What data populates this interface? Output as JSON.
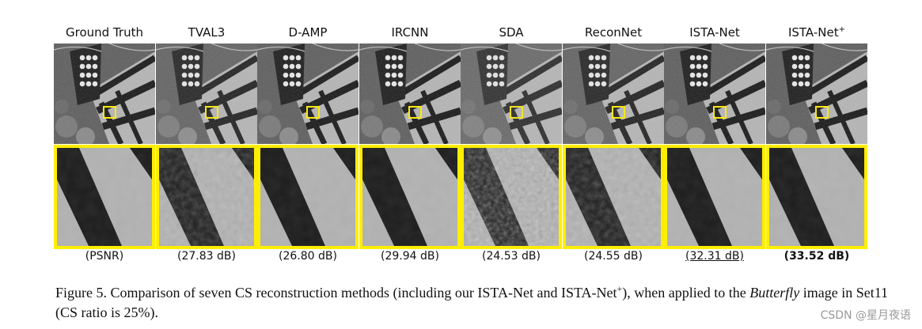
{
  "methods": [
    {
      "name": "Ground Truth",
      "psnr": "(PSNR)",
      "style": "plain",
      "noise": 0
    },
    {
      "name": "TVAL3",
      "psnr": "(27.83 dB)",
      "style": "plain",
      "noise": 1
    },
    {
      "name": "D-AMP",
      "psnr": "(26.80 dB)",
      "style": "plain",
      "noise": 0
    },
    {
      "name": "IRCNN",
      "psnr": "(29.94 dB)",
      "style": "plain",
      "noise": 0
    },
    {
      "name": "SDA",
      "psnr": "(24.53 dB)",
      "style": "plain",
      "noise": 2
    },
    {
      "name": "ReconNet",
      "psnr": "(24.55 dB)",
      "style": "plain",
      "noise": 1
    },
    {
      "name": "ISTA-Net",
      "psnr": "(32.31 dB)",
      "style": "second",
      "noise": 0
    },
    {
      "name": "ISTA-Net",
      "name_sup": "+",
      "psnr": "(33.52 dB)",
      "style": "best",
      "noise": 0
    }
  ],
  "caption": {
    "part1": "Figure 5. Comparison of seven CS reconstruction methods (including our ISTA-Net and ISTA-Net",
    "sup": "+",
    "part2": "), when applied to the ",
    "image_name": "Butterfly",
    "part3": " image in Set11 (CS ratio is 25%)."
  },
  "watermark": "CSDN @星月夜语",
  "colors": {
    "highlight": "#ffee00",
    "wing_dark": "#1c1c1c",
    "wing_light": "#b8b8b8"
  }
}
